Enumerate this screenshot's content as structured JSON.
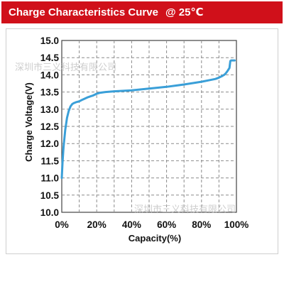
{
  "header": {
    "title": "Charge Characteristics Curve",
    "condition": "@ 25℃"
  },
  "watermark": "深圳市三义科技有限公司",
  "colors": {
    "title_bar": "#d0101a",
    "curve": "#3a9fd8",
    "grid": "#8c8c8c"
  },
  "chart_data": {
    "type": "line",
    "title": "Charge Characteristics Curve @ 25℃",
    "xlabel": "Capacity(%)",
    "ylabel": "Charge Voltage(V)",
    "xlim": [
      0,
      100
    ],
    "ylim": [
      10.0,
      15.0
    ],
    "x_ticks": [
      "0%",
      "20%",
      "40%",
      "60%",
      "80%",
      "100%"
    ],
    "y_ticks": [
      "10.0",
      "10.5",
      "11.0",
      "11.5",
      "12.0",
      "12.5",
      "13.0",
      "13.5",
      "14.0",
      "14.5",
      "15.0"
    ],
    "grid": true,
    "series": [
      {
        "x": [
          0,
          0.5,
          1,
          2,
          3,
          4,
          5,
          6,
          7,
          8,
          10,
          12,
          15,
          18,
          20,
          22,
          25,
          30,
          40,
          50,
          60,
          70,
          80,
          85,
          88,
          90,
          92,
          93,
          94,
          95,
          96,
          96.5,
          97,
          98,
          99
        ],
        "y": [
          11.0,
          11.5,
          11.9,
          12.4,
          12.75,
          12.95,
          13.08,
          13.15,
          13.18,
          13.2,
          13.23,
          13.28,
          13.35,
          13.4,
          13.45,
          13.48,
          13.5,
          13.52,
          13.55,
          13.6,
          13.65,
          13.72,
          13.8,
          13.85,
          13.88,
          13.92,
          13.97,
          14.0,
          14.05,
          14.12,
          14.2,
          14.4,
          14.42,
          14.42,
          14.42
        ]
      }
    ]
  }
}
